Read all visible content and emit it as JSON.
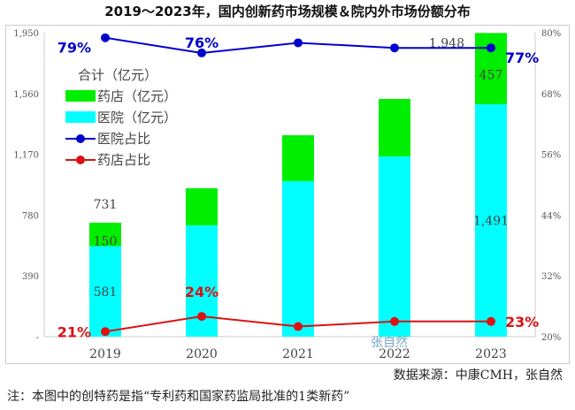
{
  "chart_data": {
    "type": "bar",
    "title": "2019～2023年，国内创新药市场规模＆院内外市场份额分布",
    "categories": [
      "2019",
      "2020",
      "2021",
      "2022",
      "2023"
    ],
    "series": [
      {
        "name": "医院（亿元）",
        "type": "bar",
        "axis": "left",
        "color": "#00ffff",
        "values": [
          581,
          714,
          998,
          1156,
          1491
        ]
      },
      {
        "name": "药店（亿元）",
        "type": "bar",
        "axis": "left",
        "color": "#00ee00",
        "values": [
          150,
          238,
          294,
          369,
          457
        ]
      },
      {
        "name": "医院占比",
        "type": "line",
        "axis": "right",
        "color": "#0000cc",
        "values": [
          79,
          76,
          78,
          77,
          77
        ]
      },
      {
        "name": "药店占比",
        "type": "line",
        "axis": "right",
        "color": "#dd1111",
        "values": [
          21,
          24,
          22,
          23,
          23
        ]
      }
    ],
    "totals_label": "合计（亿元）",
    "totals": [
      731,
      952,
      1292,
      1525,
      1948
    ],
    "data_labels": {
      "bars": [
        {
          "year": "2019",
          "total": "731",
          "pharmacy": "150",
          "hospital": "581"
        },
        {
          "year": "2023",
          "total": "1,948",
          "pharmacy": "457",
          "hospital": "1,491"
        }
      ],
      "hospital_share": [
        {
          "year": "2019",
          "text": "79%"
        },
        {
          "year": "2020",
          "text": "76%"
        },
        {
          "year": "2023",
          "text": "77%"
        }
      ],
      "pharmacy_share": [
        {
          "year": "2019",
          "text": "21%"
        },
        {
          "year": "2020",
          "text": "24%"
        },
        {
          "year": "2023",
          "text": "23%"
        }
      ]
    },
    "left_axis": {
      "ylim": [
        0,
        1950
      ],
      "ticks": [
        "-",
        "390",
        "780",
        "1,170",
        "1,560",
        "1,950"
      ]
    },
    "right_axis": {
      "ylim": [
        20,
        80
      ],
      "ticks": [
        "20%",
        "32%",
        "44%",
        "56%",
        "68%",
        "80%"
      ]
    },
    "legend": "upper-left",
    "grid": false
  },
  "watermark": "张自然",
  "source": "数据来源：中康CMH，张自然",
  "note": "注：本图中的创特药是指“专利药和国家药监局批准的1类新药”"
}
